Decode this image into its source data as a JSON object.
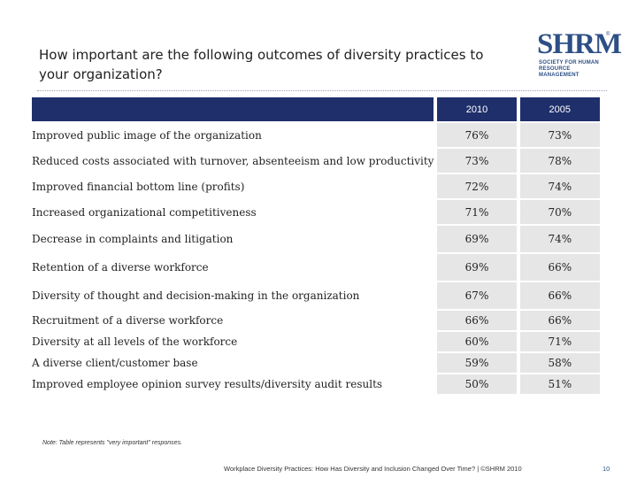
{
  "title": "How important are the following outcomes of diversity practices to your organization?",
  "logo": {
    "word": "SHRM",
    "registered": "®",
    "line1": "SOCIETY FOR HUMAN",
    "line2": "RESOURCE MANAGEMENT"
  },
  "table": {
    "headers": [
      "",
      "2010",
      "2005"
    ],
    "rows": [
      {
        "label": "Improved public image of the organization",
        "y2010": "76%",
        "y2005": "73%"
      },
      {
        "label": "Reduced costs associated with turnover, absenteeism and low productivity",
        "y2010": "73%",
        "y2005": "78%"
      },
      {
        "label": "Improved financial bottom line (profits)",
        "y2010": "72%",
        "y2005": "74%"
      },
      {
        "label": "Increased organizational competitiveness",
        "y2010": "71%",
        "y2005": "70%"
      },
      {
        "label": "Decrease in complaints and litigation",
        "y2010": "69%",
        "y2005": "74%"
      },
      {
        "label": "Retention of a diverse workforce",
        "y2010": "69%",
        "y2005": "66%"
      },
      {
        "label": "Diversity of thought and decision-making in the organization",
        "y2010": "67%",
        "y2005": "66%"
      },
      {
        "label": "Recruitment of a diverse workforce",
        "y2010": "66%",
        "y2005": "66%"
      },
      {
        "label": "Diversity at all levels of the workforce",
        "y2010": "60%",
        "y2005": "71%"
      },
      {
        "label": "A diverse client/customer base",
        "y2010": "59%",
        "y2005": "58%"
      },
      {
        "label": "Improved employee opinion survey results/diversity audit results",
        "y2010": "50%",
        "y2005": "51%"
      }
    ]
  },
  "note": "Note: Table represents \"very important\" responses.",
  "footer": "Workplace Diversity Practices: How Has Diversity and Inclusion Changed Over Time? | ©SHRM 2010",
  "page_number": "10"
}
